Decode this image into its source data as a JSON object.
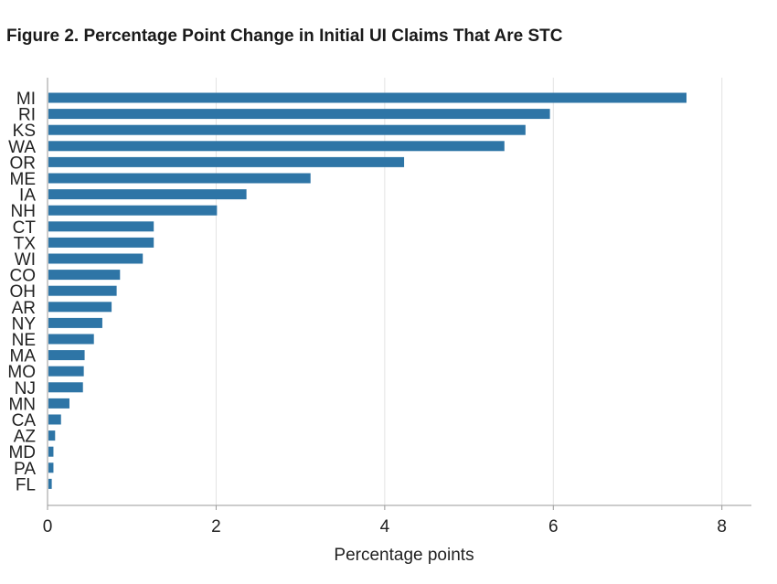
{
  "chart_data": {
    "type": "bar",
    "orientation": "horizontal",
    "title": "Figure 2. Percentage Point Change in Initial UI Claims That Are STC",
    "xlabel": "Percentage points",
    "ylabel": "",
    "xlim": [
      0,
      8.35
    ],
    "xticks": [
      0,
      2,
      4,
      6,
      8
    ],
    "grid": "vertical",
    "legend": "none",
    "bar_color": "#2e75a6",
    "categories": [
      "MI",
      "RI",
      "KS",
      "WA",
      "OR",
      "ME",
      "IA",
      "NH",
      "CT",
      "TX",
      "WI",
      "CO",
      "OH",
      "AR",
      "NY",
      "NE",
      "MA",
      "MO",
      "NJ",
      "MN",
      "CA",
      "AZ",
      "MD",
      "PA",
      "FL"
    ],
    "values": [
      7.58,
      5.96,
      5.67,
      5.42,
      4.23,
      3.12,
      2.36,
      2.01,
      1.26,
      1.26,
      1.13,
      0.86,
      0.82,
      0.76,
      0.65,
      0.55,
      0.44,
      0.43,
      0.42,
      0.26,
      0.16,
      0.09,
      0.07,
      0.07,
      0.05
    ]
  }
}
